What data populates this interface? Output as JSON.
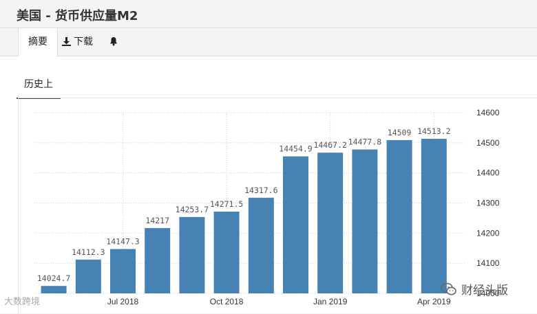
{
  "header": {
    "title": "美国 - 货币供应量M2"
  },
  "tabs": [
    {
      "label": "摘要",
      "icon": null,
      "active": true
    },
    {
      "label": "下载",
      "icon": "download-icon",
      "active": false
    },
    {
      "label": "",
      "icon": "bell-icon",
      "active": false
    }
  ],
  "subtab": {
    "label": "历史上"
  },
  "colors": {
    "bar": "#4682b4",
    "grid": "#cccccc",
    "text": "#555555"
  },
  "chart_data": {
    "type": "bar",
    "categories": [
      "2018-05",
      "2018-06",
      "2018-07",
      "2018-08",
      "2018-09",
      "2018-10",
      "2018-11",
      "2018-12",
      "2019-01",
      "2019-02",
      "2019-03",
      "2019-04"
    ],
    "values": [
      14024.7,
      14112.3,
      14147.3,
      14217,
      14253.7,
      14271.5,
      14317.6,
      14454.9,
      14467.2,
      14477.8,
      14509,
      14513.2
    ],
    "value_labels": [
      "14024.7",
      "14112.3",
      "14147.3",
      "14217",
      "14253.7",
      "14271.5",
      "14317.6",
      "14454.9",
      "14467.2",
      "14477.8",
      "14509",
      "14513.2"
    ],
    "x_ticks": [
      {
        "label": "Jul 2018",
        "at": 2
      },
      {
        "label": "Oct 2018",
        "at": 5
      },
      {
        "label": "Jan 2019",
        "at": 8
      },
      {
        "label": "Apr 2019",
        "at": 11
      }
    ],
    "y_ticks": [
      "14000",
      "14100",
      "14200",
      "14300",
      "14400",
      "14500",
      "14600"
    ],
    "ylim": [
      14000,
      14600
    ],
    "grid": true,
    "y_axis_side": "right"
  },
  "watermarks": {
    "left": "大数跨境",
    "right": "财经头版"
  }
}
